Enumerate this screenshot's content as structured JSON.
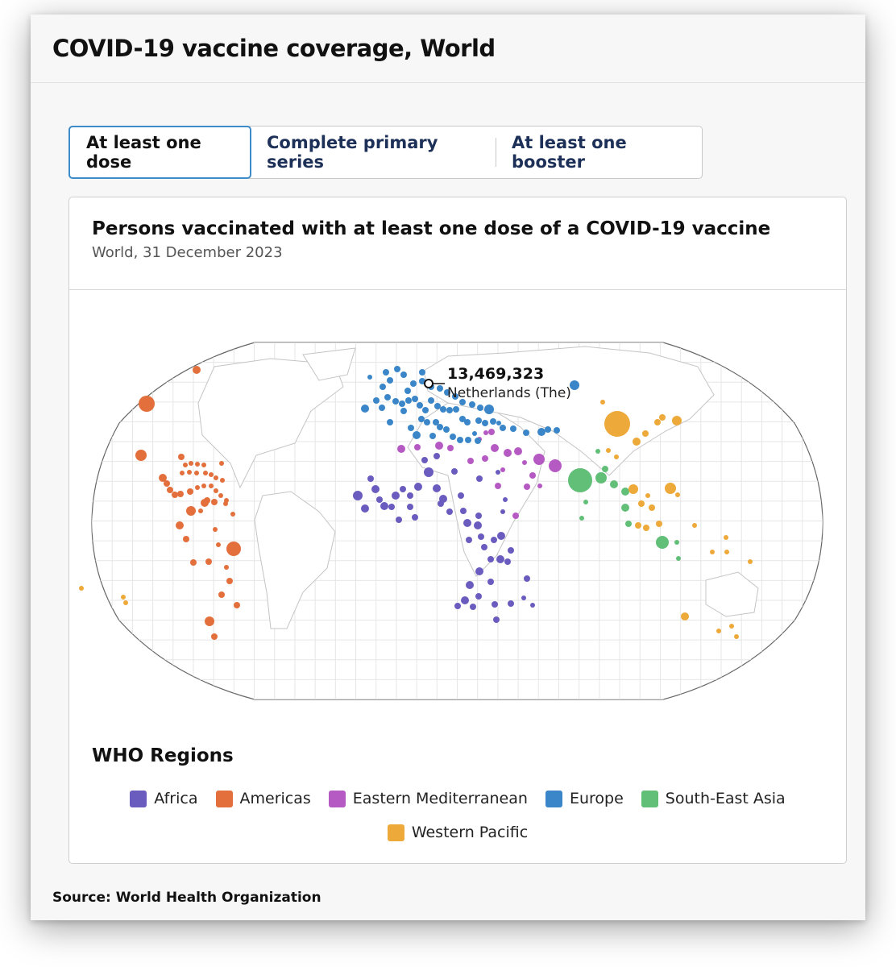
{
  "header": {
    "title": "COVID-19 vaccine coverage, World"
  },
  "tabs": [
    {
      "label": "At least one dose",
      "active": true
    },
    {
      "label": "Complete primary series",
      "active": false
    },
    {
      "label": "At least one booster",
      "active": false
    }
  ],
  "card": {
    "title": "Persons vaccinated with at least one dose of a COVID-19 vaccine",
    "subtitle": "World, 31 December 2023"
  },
  "tooltip": {
    "value": "13,469,323",
    "country": "Netherlands (The)"
  },
  "legend": {
    "title": "WHO Regions",
    "items": [
      {
        "label": "Africa",
        "color": "#6a5cbf"
      },
      {
        "label": "Americas",
        "color": "#e3703c"
      },
      {
        "label": "Eastern Mediterranean",
        "color": "#b65ac3"
      },
      {
        "label": "Europe",
        "color": "#3a86c8"
      },
      {
        "label": "South-East Asia",
        "color": "#62bf78"
      },
      {
        "label": "Western Pacific",
        "color": "#eda93a"
      }
    ]
  },
  "source": "Source: World Health Organization"
}
